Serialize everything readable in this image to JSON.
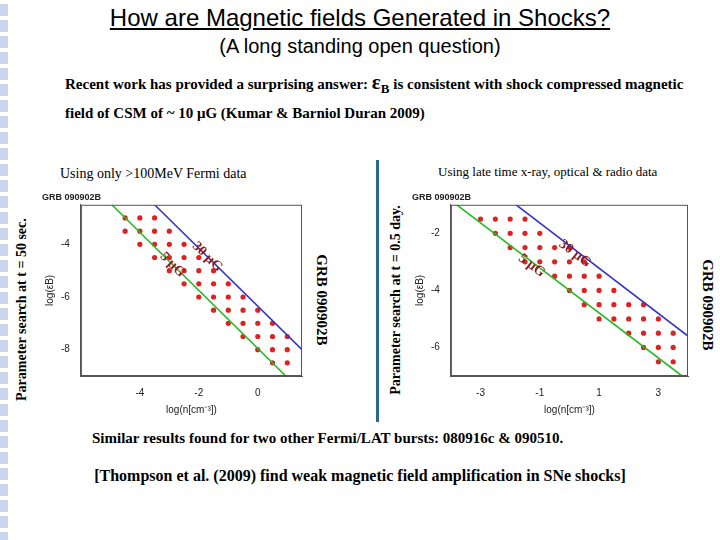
{
  "slide": {
    "title": "How are Magnetic fields Generated in Shocks?",
    "subtitle": "(A long standing open question)",
    "answer_before": "Recent work has provided a surprising answer:",
    "answer_symbol": "ε",
    "answer_subscript": "B",
    "answer_after": "is consistent with shock compressed magnetic field of CSM of ~ 10 μG (Kumar & Barniol Duran 2009)",
    "left_heading": "Using only >100MeV Fermi data",
    "right_heading": "Using late time x-ray, optical & radio data",
    "left_side_label": "Parameter search at t = 50 sec.",
    "middle_side_label": "Parameter search at t = 0.5 day.",
    "left_grb_label": "GRB 090902B",
    "right_grb_label": "GRB 090902B",
    "footer_1": "Similar results found for two other Fermi/LAT bursts: 080916c & 090510.",
    "footer_2": "[Thompson et al. (2009) find weak magnetic field amplification in SNe shocks]"
  },
  "chart_data": [
    {
      "type": "scatter",
      "title": "GRB 090902B",
      "x_label": "log(n[cm⁻³])",
      "y_label": "log(εB)",
      "xlim": [
        -6,
        1.5
      ],
      "xticks": [
        -4,
        -2,
        0
      ],
      "ylim": [
        -9,
        -2.5
      ],
      "yticks": [
        -8,
        -6,
        -4
      ],
      "grid": false,
      "series": [
        {
          "color": "#dd2222",
          "marker": "circle",
          "x": [
            -4.5,
            -4.5,
            -4,
            -4,
            -4,
            -3.5,
            -3.5,
            -3.5,
            -3.5,
            -3,
            -3,
            -3,
            -3,
            -2.5,
            -2.5,
            -2.5,
            -2.5,
            -2,
            -2,
            -2,
            -2,
            -1.5,
            -1.5,
            -1.5,
            -1.5,
            -1,
            -1,
            -1,
            -1,
            -0.5,
            -0.5,
            -0.5,
            -0.5,
            0,
            0,
            0,
            0,
            0.5,
            0.5,
            0.5,
            0.5,
            1,
            1,
            1
          ],
          "values": [
            -3,
            -3.5,
            -3,
            -3.5,
            -4,
            -3,
            -3.5,
            -4,
            -4.5,
            -3.5,
            -4,
            -4.5,
            -5,
            -4,
            -4.5,
            -5,
            -5.5,
            -4.5,
            -5,
            -5.5,
            -6,
            -5,
            -5.5,
            -6,
            -6.5,
            -5.5,
            -6,
            -6.5,
            -7,
            -6,
            -6.5,
            -7,
            -7.5,
            -6.5,
            -7,
            -7.5,
            -8,
            -7,
            -7.5,
            -8,
            -8.5,
            -7.5,
            -8,
            -8.5
          ]
        },
        {
          "name": "30 μG",
          "type": "line",
          "color": "#3333cc",
          "x": [
            -3.5,
            1.5
          ],
          "values": [
            -2.5,
            -8.0
          ]
        },
        {
          "name": "5 μG",
          "type": "line",
          "color": "#22bb22",
          "x": [
            -4.95,
            0.95
          ],
          "values": [
            -2.5,
            -9
          ]
        }
      ]
    },
    {
      "type": "scatter",
      "title": "GRB 090902B",
      "x_label": "log(n[cm⁻³])",
      "y_label": "log(εB)",
      "xlim": [
        -4,
        4
      ],
      "xticks": [
        -3,
        -1,
        1,
        3
      ],
      "ylim": [
        -7,
        -1
      ],
      "yticks": [
        -6,
        -4,
        -2
      ],
      "grid": false,
      "series": [
        {
          "color": "#dd2222",
          "marker": "circle",
          "x": [
            -3,
            -2.5,
            -2.5,
            -2,
            -2,
            -2,
            -1.5,
            -1.5,
            -1.5,
            -1.5,
            -1,
            -1,
            -1,
            -0.5,
            -0.5,
            -0.5,
            0,
            0,
            0,
            0,
            0.5,
            0.5,
            0.5,
            0.5,
            1,
            1,
            1,
            1,
            1.5,
            1.5,
            1.5,
            2,
            2,
            2,
            2.5,
            2.5,
            2.5,
            2.5,
            3,
            3,
            3,
            3,
            3.5,
            3.5,
            3.5
          ],
          "values": [
            -1.5,
            -1.5,
            -2,
            -1.5,
            -2,
            -2.5,
            -1.5,
            -2,
            -2.5,
            -3,
            -2,
            -2.5,
            -3,
            -2.5,
            -3,
            -3.5,
            -2.5,
            -3,
            -3.5,
            -4,
            -3,
            -3.5,
            -4,
            -4.5,
            -3.5,
            -4,
            -4.5,
            -5,
            -4,
            -4.5,
            -5,
            -4.5,
            -5,
            -5.5,
            -4.5,
            -5,
            -5.5,
            -6,
            -5,
            -5.5,
            -6,
            -6.5,
            -5.5,
            -6,
            -6.5
          ]
        },
        {
          "name": "30 μG",
          "type": "line",
          "color": "#3333cc",
          "x": [
            -1.8,
            4
          ],
          "values": [
            -1,
            -5.6
          ]
        },
        {
          "name": "5 μG",
          "type": "line",
          "color": "#22bb22",
          "x": [
            -3.8,
            3.8
          ],
          "values": [
            -1,
            -7
          ]
        }
      ]
    }
  ]
}
